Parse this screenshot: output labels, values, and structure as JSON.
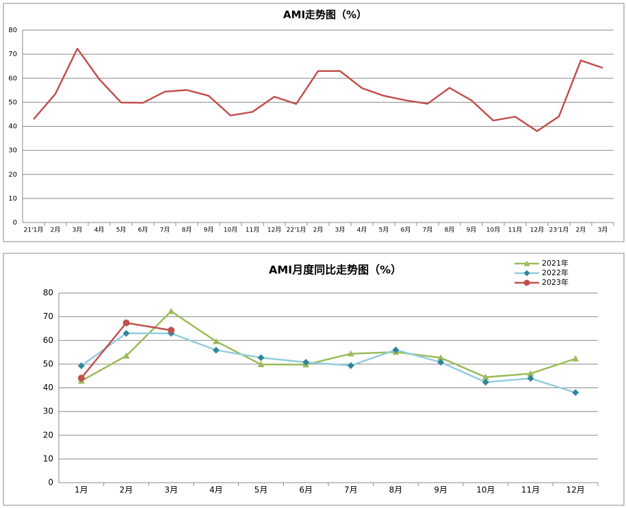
{
  "chart_data": [
    {
      "type": "line",
      "title": "AMI走势图（%）",
      "categories": [
        "21'1月",
        "2月",
        "3月",
        "4月",
        "5月",
        "6月",
        "7月",
        "8月",
        "9月",
        "10月",
        "11月",
        "12月",
        "22'1月",
        "2月",
        "3月",
        "4月",
        "5月",
        "6月",
        "7月",
        "8月",
        "9月",
        "10月",
        "11月",
        "12月",
        "23'1月",
        "2月",
        "3月"
      ],
      "series": [
        {
          "name": null,
          "color": "#c0504d",
          "values": [
            42.9,
            53.5,
            72.3,
            59.6,
            49.9,
            49.8,
            54.4,
            55.1,
            52.7,
            44.5,
            46.0,
            52.3,
            49.3,
            63.0,
            63.0,
            55.9,
            52.7,
            50.8,
            49.4,
            56.0,
            50.8,
            42.4,
            44.0,
            38.0,
            44.1,
            67.4,
            64.3
          ]
        }
      ],
      "ylim": [
        0,
        80
      ],
      "yticks": [
        0,
        10,
        20,
        30,
        40,
        50,
        60,
        70,
        80
      ],
      "grid": true
    },
    {
      "type": "line",
      "title": "AMI月度同比走势图（%）",
      "categories": [
        "1月",
        "2月",
        "3月",
        "4月",
        "5月",
        "6月",
        "7月",
        "8月",
        "9月",
        "10月",
        "11月",
        "12月"
      ],
      "series": [
        {
          "name": "2021年",
          "color": "#9bbb59",
          "marker": "triangle",
          "marker_color": "#9bbb59",
          "values": [
            42.9,
            53.5,
            72.3,
            59.6,
            49.9,
            49.8,
            54.4,
            55.1,
            52.7,
            44.5,
            46.0,
            52.3
          ]
        },
        {
          "name": "2022年",
          "color": "#92cddc",
          "marker": "diamond",
          "marker_color": "#31859c",
          "values": [
            49.3,
            63.0,
            63.0,
            55.9,
            52.7,
            50.8,
            49.4,
            56.0,
            50.8,
            42.4,
            44.0,
            38.0
          ]
        },
        {
          "name": "2023年",
          "color": "#c0504d",
          "marker": "circle",
          "marker_color": "#c0504d",
          "values": [
            44.1,
            67.4,
            64.3,
            null,
            null,
            null,
            null,
            null,
            null,
            null,
            null,
            null
          ]
        }
      ],
      "ylim": [
        0,
        80
      ],
      "yticks": [
        0,
        10,
        20,
        30,
        40,
        50,
        60,
        70,
        80
      ],
      "grid": true,
      "legend": "top-right"
    }
  ]
}
